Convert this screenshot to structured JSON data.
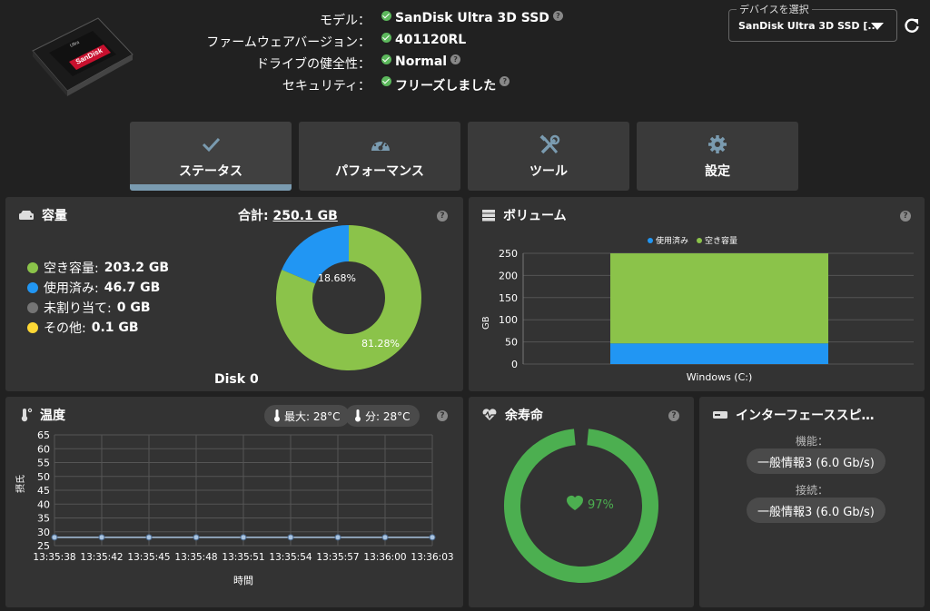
{
  "header": {
    "rows": [
      {
        "label": "モデル：",
        "value": "SanDisk Ultra 3D SSD",
        "help": true
      },
      {
        "label": "ファームウェアバージョン：",
        "value": "401120RL",
        "help": false
      },
      {
        "label": "ドライブの健全性：",
        "value": "Normal",
        "help": true
      },
      {
        "label": "セキュリティ：",
        "value": "フリーズしました",
        "help": true
      }
    ],
    "device_select_legend": "デバイスを選択",
    "device_select_value": "SanDisk Ultra 3D SSD [...",
    "drive_label": "SanDisk",
    "drive_sub": "Ultra"
  },
  "tabs": [
    {
      "label": "ステータス",
      "icon": "check-icon",
      "active": true
    },
    {
      "label": "パフォーマンス",
      "icon": "gauge-icon",
      "active": false
    },
    {
      "label": "ツール",
      "icon": "tools-icon",
      "active": false
    },
    {
      "label": "設定",
      "icon": "gear-icon",
      "active": false
    }
  ],
  "capacity": {
    "title": "容量",
    "total_label": "合計:",
    "total_value": "250.1 GB",
    "legend": [
      {
        "label": "空き容量:",
        "value": "203.2 GB",
        "color": "#8bc34a"
      },
      {
        "label": "使用済み:",
        "value": "46.7 GB",
        "color": "#2196f3"
      },
      {
        "label": "未割り当て:",
        "value": "0 GB",
        "color": "#757575"
      },
      {
        "label": "その他:",
        "value": "0.1 GB",
        "color": "#fdd835"
      }
    ],
    "disk_label": "Disk 0",
    "used_pct_label": "18.68%",
    "free_pct_label": "81.28%",
    "chart_data": {
      "type": "pie",
      "categories": [
        "空き容量",
        "使用済み"
      ],
      "values": [
        81.28,
        18.68
      ],
      "colors": [
        "#8bc34a",
        "#2196f3"
      ]
    }
  },
  "volume": {
    "title": "ボリューム",
    "legend": [
      {
        "label": "使用済み",
        "color": "#2196f3"
      },
      {
        "label": "空き容量",
        "color": "#8bc34a"
      }
    ],
    "ylabel": "GB",
    "yticks": [
      "250",
      "200",
      "150",
      "100",
      "50",
      "0"
    ],
    "xlabel": "Windows (C:)",
    "chart_data": {
      "type": "bar",
      "categories": [
        "Windows (C:)"
      ],
      "series": [
        {
          "name": "使用済み",
          "values": [
            46.7
          ]
        },
        {
          "name": "空き容量",
          "values": [
            203.2
          ]
        }
      ],
      "stacked": true,
      "ylabel": "GB",
      "ylim": [
        0,
        250
      ]
    }
  },
  "temperature": {
    "title": "温度",
    "max_label": "最大: 28°C",
    "min_label": "分: 28°C",
    "ylabel": "摂氏",
    "xlabel": "時間",
    "yticks": [
      "65",
      "60",
      "55",
      "50",
      "45",
      "40",
      "35",
      "30",
      "25"
    ],
    "xticks": [
      "13:35:38",
      "13:35:42",
      "13:35:45",
      "13:35:48",
      "13:35:51",
      "13:35:54",
      "13:35:57",
      "13:36:00",
      "13:36:03"
    ],
    "chart_data": {
      "type": "line",
      "x": [
        "13:35:38",
        "13:35:42",
        "13:35:45",
        "13:35:48",
        "13:35:51",
        "13:35:54",
        "13:35:57",
        "13:36:00",
        "13:36:03"
      ],
      "values": [
        28,
        28,
        28,
        28,
        28,
        28,
        28,
        28,
        28
      ],
      "xlabel": "時間",
      "ylabel": "摂氏",
      "ylim": [
        25,
        65
      ]
    }
  },
  "lifespan": {
    "title": "余寿命",
    "value_label": "97%",
    "chart_data": {
      "type": "pie",
      "categories": [
        "余寿命"
      ],
      "values": [
        97
      ],
      "colors": [
        "#4caf50"
      ]
    }
  },
  "interface": {
    "title": "インターフェーススピ…",
    "capability_label": "機能：",
    "capability_value": "一般情報3 (6.0 Gb/s)",
    "connection_label": "接続：",
    "connection_value": "一般情報3 (6.0 Gb/s)"
  }
}
